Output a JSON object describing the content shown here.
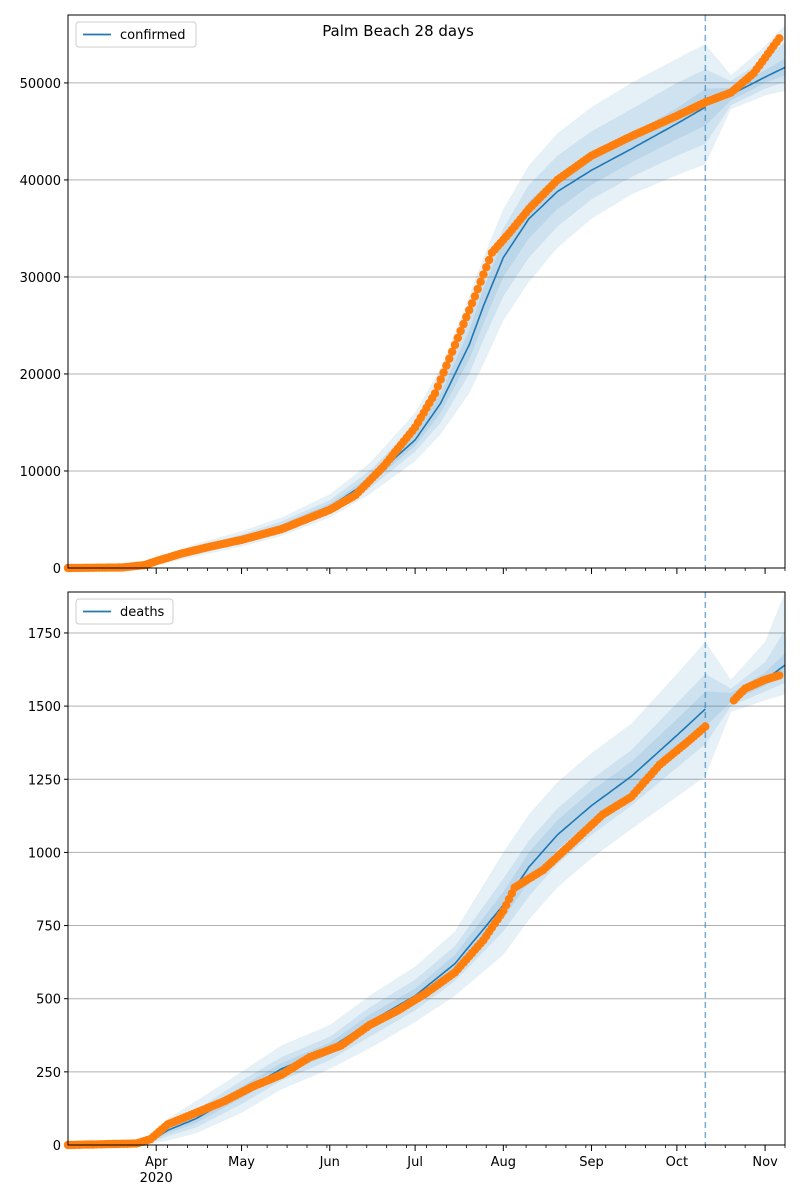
{
  "title": "Palm Beach 28 days",
  "colors": {
    "model_line": "#1f77b4",
    "band": "#1f77b4",
    "observed": "#ff7f0e",
    "forecast_marker": "#1f77b4",
    "grid": "#b0b0b0"
  },
  "chart_data": [
    {
      "type": "line",
      "legend": "confirmed",
      "legend_position": "top-left",
      "grid": "horizontal",
      "xlim": [
        "2020-03-01",
        "2020-11-08"
      ],
      "ylim": [
        0,
        57000
      ],
      "yticks": [
        0,
        10000,
        20000,
        30000,
        40000,
        50000
      ],
      "xticks": [
        {
          "date": "2020-04-01",
          "label": "Apr",
          "sub": "2020"
        },
        {
          "date": "2020-05-01",
          "label": "May",
          "sub": ""
        },
        {
          "date": "2020-06-01",
          "label": "Jun",
          "sub": ""
        },
        {
          "date": "2020-07-01",
          "label": "Jul",
          "sub": ""
        },
        {
          "date": "2020-08-01",
          "label": "Aug",
          "sub": ""
        },
        {
          "date": "2020-09-01",
          "label": "Sep",
          "sub": ""
        },
        {
          "date": "2020-10-01",
          "label": "Oct",
          "sub": ""
        },
        {
          "date": "2020-11-01",
          "label": "Nov",
          "sub": ""
        }
      ],
      "forecast_start": "2020-10-11",
      "model": {
        "x": [
          "2020-03-01",
          "2020-03-25",
          "2020-04-01",
          "2020-04-15",
          "2020-05-01",
          "2020-05-15",
          "2020-06-01",
          "2020-06-15",
          "2020-07-01",
          "2020-07-10",
          "2020-07-20",
          "2020-07-25",
          "2020-08-01",
          "2020-08-10",
          "2020-08-20",
          "2020-09-01",
          "2020-09-15",
          "2020-10-01",
          "2020-10-11",
          "2020-10-20",
          "2020-11-01",
          "2020-11-08"
        ],
        "y": [
          0,
          200,
          600,
          1800,
          3000,
          4200,
          6300,
          9000,
          13200,
          17000,
          23000,
          27000,
          32000,
          36000,
          38800,
          41000,
          43200,
          45800,
          47500,
          48800,
          50600,
          51600
        ],
        "bands": [
          {
            "lower": [
              0,
              100,
              300,
              1200,
              2200,
              3300,
              5200,
              7600,
              11000,
              13800,
              18000,
              21000,
              25500,
              29500,
              33000,
              36000,
              38500,
              40500,
              41600,
              47300,
              48700,
              49200
            ],
            "upper": [
              0,
              300,
              900,
              2500,
              3800,
              5200,
              7600,
              10800,
              16000,
              20600,
              28000,
              32000,
              37000,
              41500,
              44800,
              47500,
              50000,
              52500,
              54000,
              50800,
              53800,
              56000
            ]
          },
          {
            "lower": [
              0,
              130,
              400,
              1450,
              2550,
              3650,
              5650,
              8200,
              12000,
              15000,
              20000,
              23500,
              28000,
              32000,
              35200,
              38000,
              40300,
              42500,
              43700,
              47700,
              49400,
              50100
            ],
            "upper": [
              0,
              260,
              800,
              2150,
              3450,
              4800,
              7000,
              10000,
              14800,
              19000,
              26000,
              30000,
              35000,
              39500,
              42500,
              45000,
              47300,
              50000,
              51400,
              50200,
              52500,
              54200
            ]
          },
          {
            "lower": [
              0,
              160,
              500,
              1600,
              2750,
              3900,
              5950,
              8600,
              12600,
              16000,
              21500,
              25200,
              30000,
              34000,
              37000,
              39500,
              41800,
              44200,
              45600,
              48200,
              50000,
              50800
            ],
            "upper": [
              0,
              230,
              700,
              1950,
              3250,
              4500,
              6650,
              9400,
              13900,
              18000,
              24500,
              28800,
              33800,
              37800,
              40500,
              42500,
              44700,
              47400,
              49400,
              49500,
              51300,
              52500
            ]
          }
        ]
      },
      "observed": {
        "x": [
          "2020-03-01",
          "2020-03-20",
          "2020-03-28",
          "2020-04-01",
          "2020-04-10",
          "2020-04-20",
          "2020-05-01",
          "2020-05-15",
          "2020-06-01",
          "2020-06-10",
          "2020-06-20",
          "2020-07-01",
          "2020-07-08",
          "2020-07-15",
          "2020-07-22",
          "2020-07-28",
          "2020-08-03",
          "2020-08-10",
          "2020-08-20",
          "2020-09-01",
          "2020-09-15",
          "2020-10-01",
          "2020-10-11",
          "2020-10-20",
          "2020-10-28",
          "2020-11-02",
          "2020-11-06"
        ],
        "y": [
          0,
          50,
          300,
          700,
          1500,
          2200,
          2900,
          4000,
          6000,
          7500,
          10500,
          14500,
          18000,
          23000,
          28000,
          32500,
          34500,
          37000,
          40000,
          42500,
          44500,
          46600,
          48000,
          49000,
          51000,
          53000,
          54600
        ]
      }
    },
    {
      "type": "line",
      "legend": "deaths",
      "legend_position": "top-left",
      "grid": "horizontal",
      "xlim": [
        "2020-03-01",
        "2020-11-08"
      ],
      "ylim": [
        0,
        1890
      ],
      "yticks": [
        0,
        250,
        500,
        750,
        1000,
        1250,
        1500,
        1750
      ],
      "xticks": [
        {
          "date": "2020-04-01",
          "label": "Apr",
          "sub": "2020"
        },
        {
          "date": "2020-05-01",
          "label": "May",
          "sub": ""
        },
        {
          "date": "2020-06-01",
          "label": "Jun",
          "sub": ""
        },
        {
          "date": "2020-07-01",
          "label": "Jul",
          "sub": ""
        },
        {
          "date": "2020-08-01",
          "label": "Aug",
          "sub": ""
        },
        {
          "date": "2020-09-01",
          "label": "Sep",
          "sub": ""
        },
        {
          "date": "2020-10-01",
          "label": "Oct",
          "sub": ""
        },
        {
          "date": "2020-11-01",
          "label": "Nov",
          "sub": ""
        }
      ],
      "forecast_start": "2020-10-11",
      "model": {
        "x": [
          "2020-03-01",
          "2020-03-28",
          "2020-04-05",
          "2020-04-15",
          "2020-05-01",
          "2020-05-15",
          "2020-06-01",
          "2020-06-15",
          "2020-07-01",
          "2020-07-15",
          "2020-08-01",
          "2020-08-10",
          "2020-08-20",
          "2020-09-01",
          "2020-09-15",
          "2020-10-01",
          "2020-10-11",
          "2020-10-20",
          "2020-11-01",
          "2020-11-08"
        ],
        "y": [
          0,
          0,
          50,
          90,
          180,
          260,
          330,
          420,
          510,
          620,
          820,
          950,
          1060,
          1160,
          1260,
          1400,
          1490,
          1530,
          1590,
          1640
        ],
        "bands": [
          {
            "lower": [
              0,
              0,
              15,
              40,
              110,
              190,
              260,
              330,
              420,
              510,
              650,
              770,
              880,
              980,
              1080,
              1190,
              1260,
              1480,
              1520,
              1540
            ],
            "upper": [
              0,
              0,
              90,
              150,
              250,
              340,
              410,
              510,
              610,
              730,
              1000,
              1130,
              1240,
              1340,
              1440,
              1610,
              1720,
              1590,
              1720,
              1890
            ]
          },
          {
            "lower": [
              0,
              0,
              30,
              60,
              140,
              220,
              290,
              370,
              460,
              560,
              730,
              850,
              960,
              1060,
              1160,
              1290,
              1370,
              1500,
              1550,
              1580
            ],
            "upper": [
              0,
              0,
              70,
              120,
              220,
              300,
              370,
              470,
              565,
              680,
              910,
              1040,
              1150,
              1250,
              1350,
              1510,
              1610,
              1560,
              1650,
              1760
            ]
          },
          {
            "lower": [
              0,
              0,
              40,
              75,
              160,
              240,
              310,
              395,
              485,
              590,
              775,
              900,
              1010,
              1110,
              1210,
              1345,
              1430,
              1515,
              1570,
              1610
            ],
            "upper": [
              0,
              0,
              60,
              105,
              200,
              280,
              350,
              445,
              535,
              650,
              865,
              1000,
              1110,
              1210,
              1310,
              1455,
              1550,
              1545,
              1615,
              1680
            ]
          }
        ]
      },
      "observed": {
        "x": [
          "2020-03-01",
          "2020-03-25",
          "2020-03-30",
          "2020-04-05",
          "2020-04-15",
          "2020-04-25",
          "2020-05-05",
          "2020-05-15",
          "2020-05-25",
          "2020-06-05",
          "2020-06-15",
          "2020-06-25",
          "2020-07-05",
          "2020-07-15",
          "2020-07-25",
          "2020-08-01",
          "2020-08-05",
          "2020-08-15",
          "2020-08-25",
          "2020-09-05",
          "2020-09-15",
          "2020-09-25",
          "2020-10-05",
          "2020-10-11",
          "2020-10-20",
          "2020-10-25",
          "2020-11-01",
          "2020-11-06"
        ],
        "y": [
          0,
          5,
          20,
          70,
          110,
          150,
          200,
          240,
          300,
          340,
          410,
          460,
          520,
          590,
          700,
          800,
          880,
          940,
          1030,
          1130,
          1190,
          1300,
          1380,
          1430,
          1510,
          1560,
          1590,
          1605
        ]
      }
    }
  ]
}
